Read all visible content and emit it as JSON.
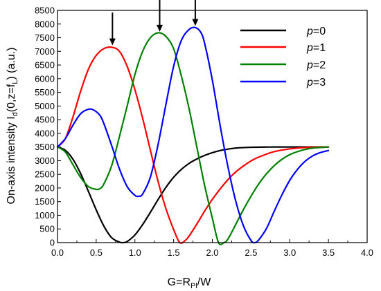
{
  "chart_data": {
    "type": "line",
    "title": "",
    "xlabel": {
      "main": "G=R",
      "sub": "Pl",
      "tail": "/W"
    },
    "ylabel": {
      "main": "On-axis intensity I",
      "sub_d": "d",
      "mid": "(0,z=f",
      "sub_l": "L",
      "tail": ") (a.u.)"
    },
    "xlim": [
      0,
      4
    ],
    "ylim": [
      0,
      8500
    ],
    "x_ticks": [
      0.0,
      0.5,
      1.0,
      1.5,
      2.0,
      2.5,
      3.0,
      3.5,
      4.0
    ],
    "x_tick_labels": [
      "0.0",
      "0.5",
      "1.0",
      "1.5",
      "2.0",
      "2.5",
      "3.0",
      "3.5",
      "4.0"
    ],
    "y_ticks": [
      0,
      500,
      1000,
      1500,
      2000,
      2500,
      3000,
      3500,
      4000,
      4500,
      5000,
      5500,
      6000,
      6500,
      7000,
      7500,
      8000,
      8500
    ],
    "y_tick_labels": [
      "0",
      "500",
      "1000",
      "1500",
      "2000",
      "2500",
      "3000",
      "3500",
      "4000",
      "4500",
      "5000",
      "5500",
      "6000",
      "6500",
      "7000",
      "7500",
      "8000",
      "8500"
    ],
    "legend_position": "top-right",
    "series": [
      {
        "name": "p=0",
        "legend_italic": "p",
        "legend_rest": "=0",
        "color": "#000000",
        "x": [
          0.0,
          0.1,
          0.2,
          0.3,
          0.4,
          0.5,
          0.6,
          0.7,
          0.8,
          0.85,
          0.9,
          1.0,
          1.1,
          1.2,
          1.3,
          1.4,
          1.5,
          1.6,
          1.7,
          1.8,
          1.9,
          2.0,
          2.1,
          2.2,
          2.3,
          2.5,
          2.8,
          3.0,
          3.5
        ],
        "y": [
          3500,
          3380,
          3050,
          2520,
          1870,
          1200,
          600,
          180,
          20,
          0,
          40,
          280,
          660,
          1110,
          1580,
          2020,
          2390,
          2680,
          2900,
          3060,
          3190,
          3290,
          3370,
          3420,
          3460,
          3490,
          3500,
          3500,
          3500
        ]
      },
      {
        "name": "p=1",
        "legend_italic": "p",
        "legend_rest": "=1",
        "color": "#ff0000",
        "x": [
          0.0,
          0.1,
          0.2,
          0.3,
          0.4,
          0.5,
          0.6,
          0.7,
          0.8,
          0.9,
          1.0,
          1.1,
          1.2,
          1.3,
          1.4,
          1.5,
          1.58,
          1.65,
          1.7,
          1.8,
          1.9,
          2.0,
          2.1,
          2.2,
          2.3,
          2.4,
          2.5,
          2.6,
          2.8,
          3.0,
          3.2,
          3.5
        ],
        "y": [
          3500,
          3800,
          4600,
          5550,
          6350,
          6850,
          7100,
          7150,
          7000,
          6450,
          5600,
          4550,
          3380,
          2230,
          1250,
          480,
          0,
          80,
          240,
          680,
          1150,
          1580,
          1960,
          2300,
          2580,
          2800,
          2990,
          3130,
          3330,
          3430,
          3480,
          3500
        ]
      },
      {
        "name": "p=2",
        "legend_italic": "p",
        "legend_rest": "=2",
        "color": "#008000",
        "x": [
          0.0,
          0.1,
          0.2,
          0.3,
          0.4,
          0.5,
          0.55,
          0.6,
          0.7,
          0.8,
          0.9,
          1.0,
          1.1,
          1.2,
          1.3,
          1.4,
          1.5,
          1.6,
          1.7,
          1.8,
          1.9,
          2.0,
          2.08,
          2.15,
          2.2,
          2.3,
          2.4,
          2.5,
          2.6,
          2.7,
          2.8,
          2.9,
          3.0,
          3.1,
          3.2,
          3.3,
          3.5
        ],
        "y": [
          3500,
          3320,
          2850,
          2380,
          2050,
          1950,
          1980,
          2150,
          2820,
          3880,
          5000,
          6150,
          7000,
          7500,
          7680,
          7550,
          7100,
          6100,
          4900,
          3500,
          2100,
          900,
          0,
          0,
          120,
          650,
          1200,
          1700,
          2150,
          2520,
          2820,
          3050,
          3220,
          3330,
          3410,
          3460,
          3500
        ]
      },
      {
        "name": "p=3",
        "legend_italic": "p",
        "legend_rest": "=3",
        "color": "#0000ff",
        "x": [
          0.0,
          0.1,
          0.2,
          0.3,
          0.4,
          0.47,
          0.55,
          0.6,
          0.7,
          0.8,
          0.9,
          1.0,
          1.05,
          1.1,
          1.2,
          1.3,
          1.4,
          1.5,
          1.6,
          1.7,
          1.78,
          1.85,
          1.9,
          2.0,
          2.1,
          2.2,
          2.3,
          2.4,
          2.5,
          2.55,
          2.6,
          2.7,
          2.8,
          2.9,
          3.0,
          3.1,
          3.2,
          3.3,
          3.4,
          3.5
        ],
        "y": [
          3500,
          3800,
          4300,
          4720,
          4880,
          4850,
          4650,
          4350,
          3550,
          2700,
          2050,
          1730,
          1700,
          1780,
          2400,
          3600,
          5050,
          6450,
          7400,
          7800,
          7870,
          7700,
          7300,
          5950,
          4300,
          2800,
          1550,
          630,
          80,
          0,
          100,
          520,
          1150,
          1750,
          2280,
          2680,
          2980,
          3180,
          3300,
          3370
        ]
      }
    ],
    "annotations": [
      {
        "type": "arrow",
        "x": 0.71,
        "y_from": 8420,
        "y_to": 7220
      },
      {
        "type": "arrow",
        "x": 1.32,
        "y_from": 8980,
        "y_to": 7720
      },
      {
        "type": "arrow",
        "x": 1.78,
        "y_from": 8950,
        "y_to": 7930
      }
    ]
  }
}
